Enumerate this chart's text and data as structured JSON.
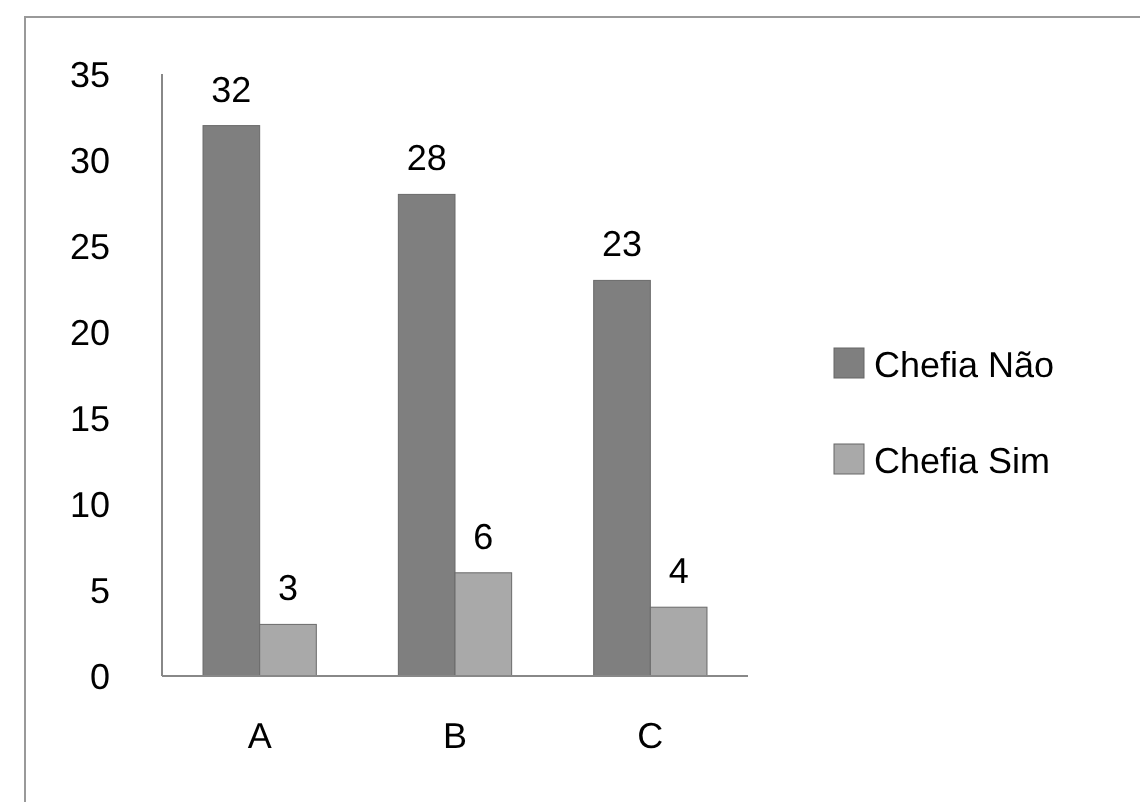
{
  "chart_data": {
    "type": "bar",
    "categories": [
      "A",
      "B",
      "C"
    ],
    "series": [
      {
        "name": "Chefia Não",
        "color": "#7f7f7f",
        "values": [
          32,
          28,
          23
        ]
      },
      {
        "name": "Chefia Sim",
        "color": "#a9a9a9",
        "values": [
          3,
          6,
          4
        ]
      }
    ],
    "ylim": [
      0,
      35
    ],
    "yticks": [
      0,
      5,
      10,
      15,
      20,
      25,
      30,
      35
    ],
    "data_labels": true,
    "legend": "right",
    "grid": false
  }
}
